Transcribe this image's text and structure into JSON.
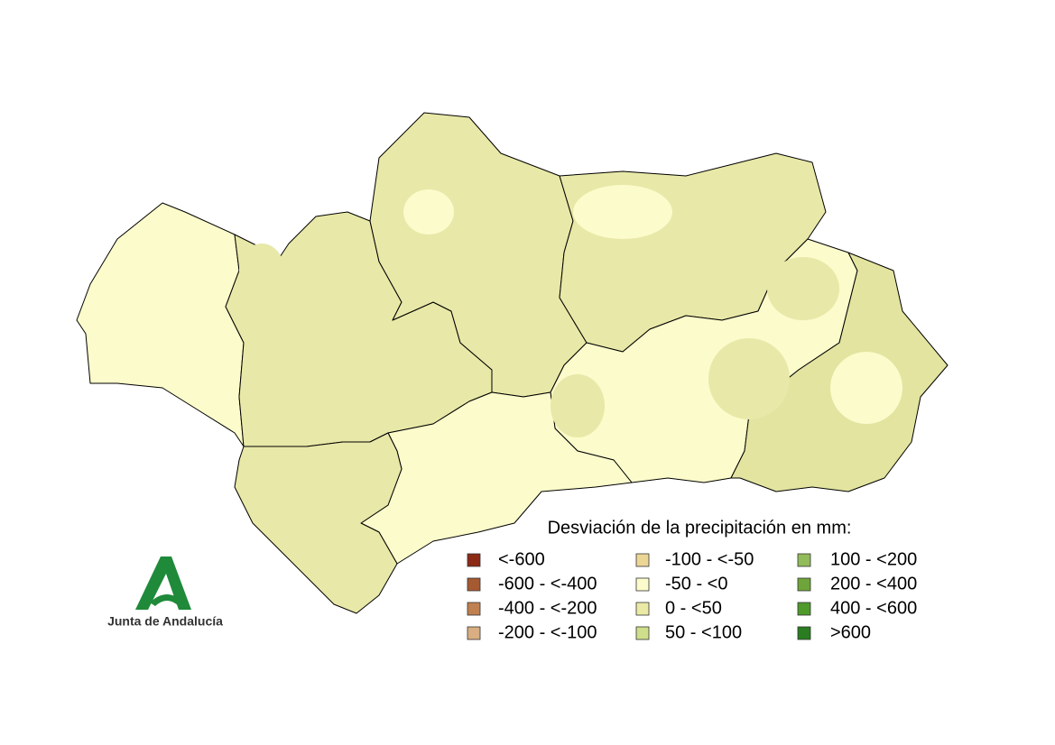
{
  "legend": {
    "title": "Desviación de la precipitación en mm:",
    "items": [
      {
        "label": "<-600",
        "color": "#8b2a16"
      },
      {
        "label": "-600 - <-400",
        "color": "#a65a32"
      },
      {
        "label": "-400 - <-200",
        "color": "#c08050"
      },
      {
        "label": "-200 - <-100",
        "color": "#d8ae82"
      },
      {
        "label": "-100 - <-50",
        "color": "#ecd696"
      },
      {
        "label": "-50 - <0",
        "color": "#fbfbcb"
      },
      {
        "label": "0 - <50",
        "color": "#eaeaa6"
      },
      {
        "label": "50 - <100",
        "color": "#cede8a"
      },
      {
        "label": "100 - <200",
        "color": "#92bb5a"
      },
      {
        "label": "200 - <400",
        "color": "#6ea53a"
      },
      {
        "label": "400 - <600",
        "color": "#4e9a2a"
      },
      {
        "label": ">600",
        "color": "#2a7d20"
      }
    ]
  },
  "logo": {
    "text": "Junta de Andalucía"
  }
}
